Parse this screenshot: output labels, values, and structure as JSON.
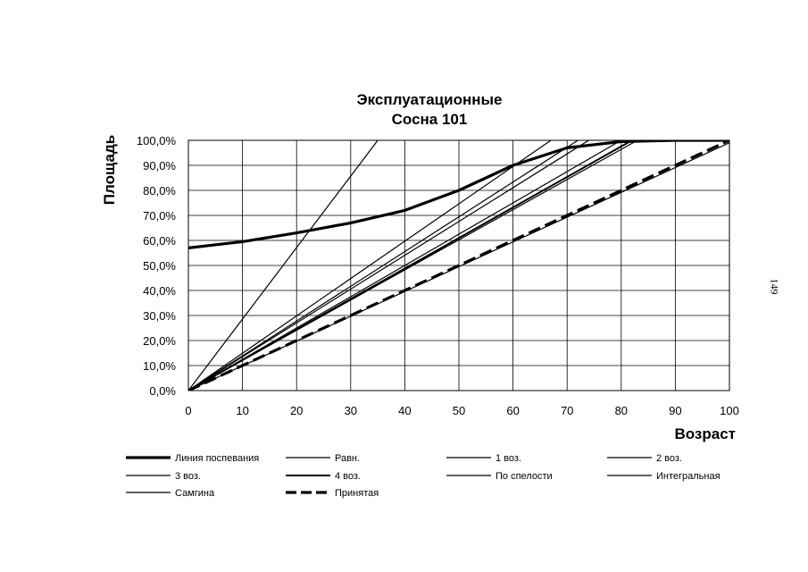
{
  "page_number": "149",
  "chart_data": {
    "type": "line",
    "title": "Эксплуатационные",
    "subtitle": "Сосна 101",
    "xlabel": "Возраст",
    "ylabel": "Площадь",
    "xlim": [
      0,
      100
    ],
    "ylim": [
      0,
      100
    ],
    "x_ticks": [
      "0",
      "10",
      "20",
      "30",
      "40",
      "50",
      "60",
      "70",
      "80",
      "90",
      "100"
    ],
    "y_ticks": [
      "0,0%",
      "10,0%",
      "20,0%",
      "30,0%",
      "40,0%",
      "50,0%",
      "60,0%",
      "70,0%",
      "80,0%",
      "90,0%",
      "100,0%"
    ],
    "grid": true,
    "legend_position": "bottom",
    "series": [
      {
        "name": "Линия поспевания",
        "style": "bold",
        "x": [
          0,
          10,
          20,
          30,
          40,
          50,
          60,
          70,
          80,
          90,
          100
        ],
        "y": [
          57,
          59.5,
          63,
          67,
          72,
          80,
          90,
          97,
          99.5,
          100,
          100
        ]
      },
      {
        "name": "Равн.",
        "style": "thin",
        "x": [
          0,
          101
        ],
        "y": [
          0,
          100
        ]
      },
      {
        "name": "1 воз.",
        "style": "thin",
        "x": [
          0,
          35
        ],
        "y": [
          0,
          100
        ]
      },
      {
        "name": "2 воз.",
        "style": "thin",
        "x": [
          0,
          67
        ],
        "y": [
          0,
          100
        ]
      },
      {
        "name": "3 воз.",
        "style": "thin",
        "x": [
          0,
          74
        ],
        "y": [
          0,
          100
        ]
      },
      {
        "name": "4 воз.",
        "style": "medium",
        "x": [
          0,
          82
        ],
        "y": [
          0,
          100
        ]
      },
      {
        "name": "По спелости",
        "style": "thin",
        "x": [
          0,
          72
        ],
        "y": [
          0,
          100
        ]
      },
      {
        "name": "Интегральная",
        "style": "thin",
        "x": [
          0,
          80
        ],
        "y": [
          0,
          100
        ]
      },
      {
        "name": "Самгина",
        "style": "thin",
        "x": [
          0,
          83
        ],
        "y": [
          0,
          100
        ]
      },
      {
        "name": "Принятая",
        "style": "dashed",
        "x": [
          0,
          100
        ],
        "y": [
          0,
          100
        ]
      }
    ]
  }
}
